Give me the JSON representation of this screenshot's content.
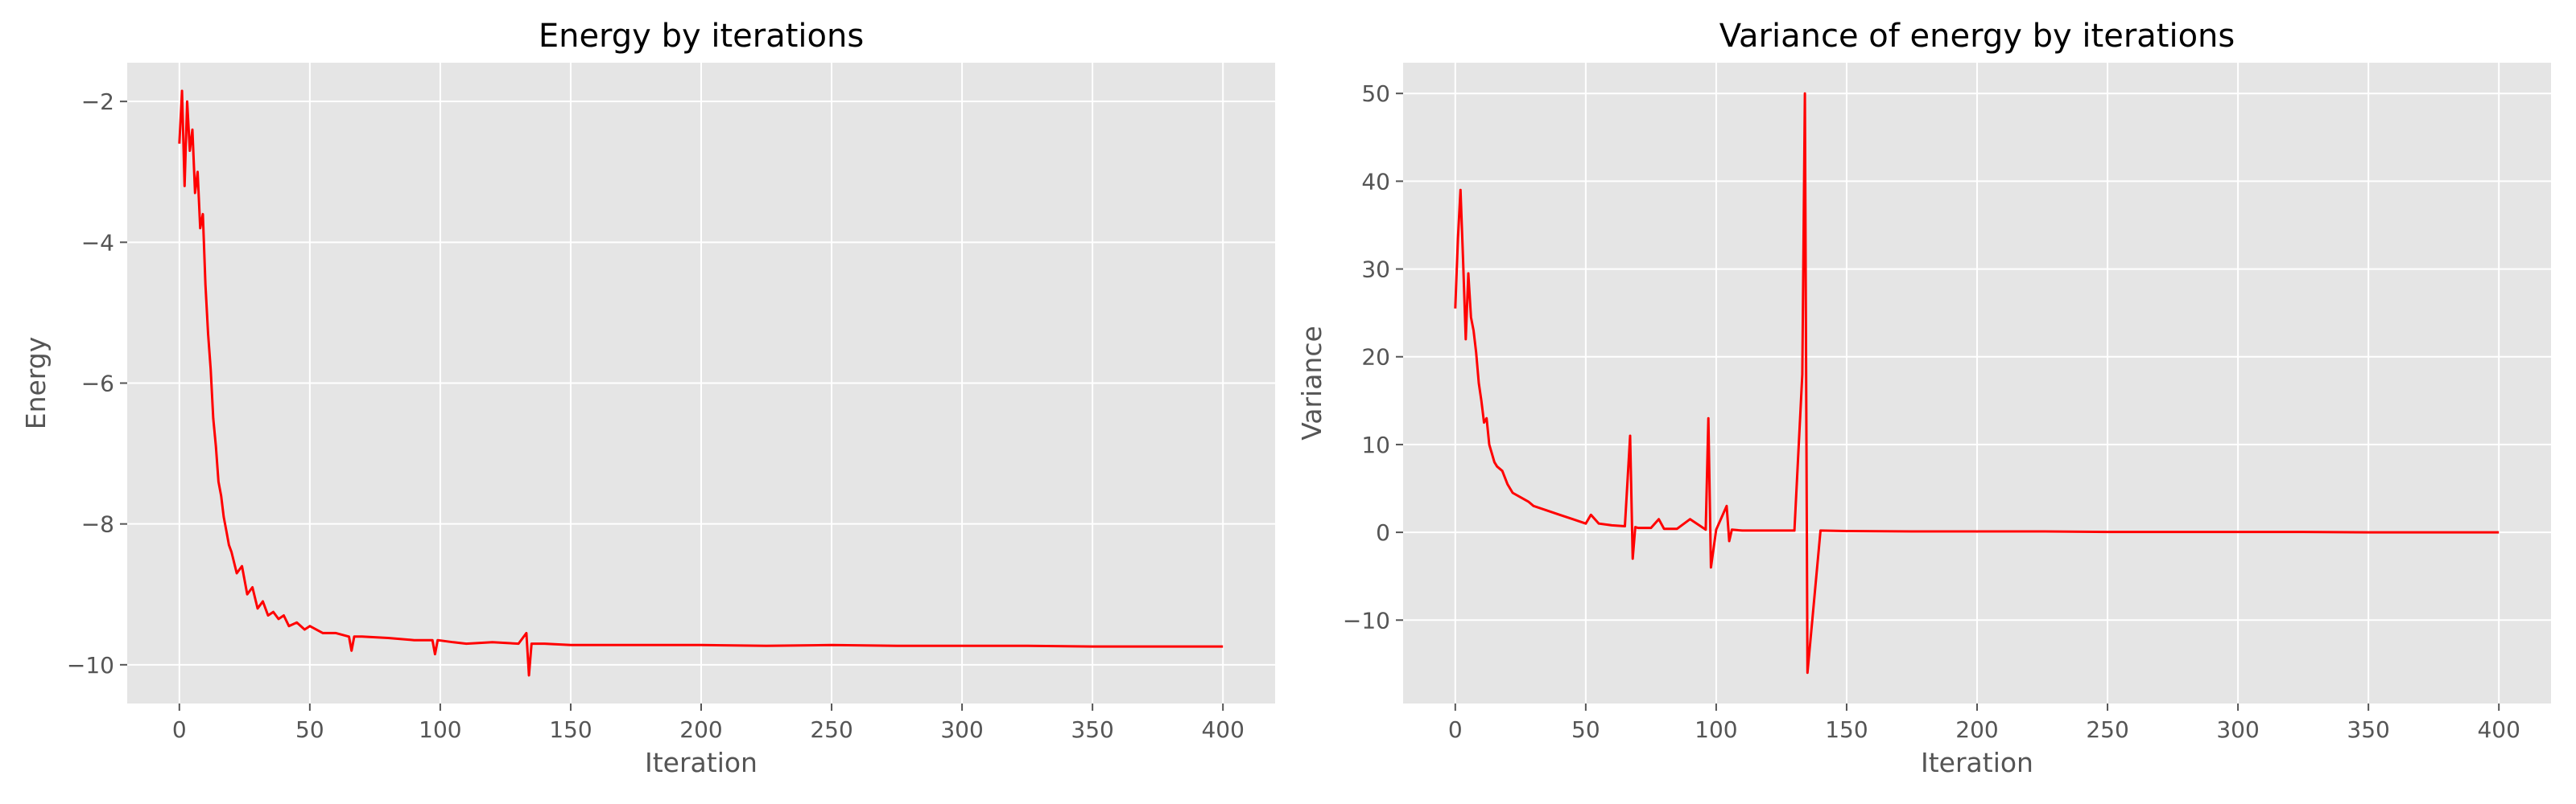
{
  "chart_data": [
    {
      "type": "line",
      "title": "Energy by iterations",
      "xlabel": "Iteration",
      "ylabel": "Energy",
      "xlim": [
        -20,
        420
      ],
      "ylim": [
        -10.55,
        -1.45
      ],
      "xticks": [
        0,
        50,
        100,
        150,
        200,
        250,
        300,
        350,
        400
      ],
      "xtick_labels": [
        "0",
        "50",
        "100",
        "150",
        "200",
        "250",
        "300",
        "350",
        "400"
      ],
      "yticks": [
        -10,
        -8,
        -6,
        -4,
        -2
      ],
      "ytick_labels": [
        "−10",
        "−8",
        "−6",
        "−4",
        "−2"
      ],
      "grid": true,
      "legend": "none",
      "series": [
        {
          "color": "#ff0000",
          "x": [
            0,
            1,
            2,
            3,
            4,
            5,
            6,
            7,
            8,
            9,
            10,
            11,
            12,
            13,
            14,
            15,
            16,
            17,
            18,
            19,
            20,
            22,
            24,
            26,
            28,
            30,
            32,
            34,
            36,
            38,
            40,
            42,
            45,
            48,
            50,
            55,
            60,
            65,
            66,
            67,
            70,
            80,
            90,
            97,
            98,
            99,
            105,
            110,
            120,
            130,
            133,
            134,
            135,
            140,
            150,
            175,
            200,
            225,
            250,
            275,
            300,
            325,
            350,
            375,
            400
          ],
          "y": [
            -2.6,
            -1.85,
            -3.2,
            -2.0,
            -2.7,
            -2.4,
            -3.3,
            -3.0,
            -3.8,
            -3.6,
            -4.6,
            -5.3,
            -5.8,
            -6.5,
            -6.9,
            -7.4,
            -7.6,
            -7.9,
            -8.1,
            -8.3,
            -8.4,
            -8.7,
            -8.6,
            -9.0,
            -8.9,
            -9.2,
            -9.1,
            -9.3,
            -9.25,
            -9.35,
            -9.3,
            -9.45,
            -9.4,
            -9.5,
            -9.45,
            -9.55,
            -9.55,
            -9.6,
            -9.8,
            -9.6,
            -9.6,
            -9.62,
            -9.65,
            -9.65,
            -9.85,
            -9.65,
            -9.68,
            -9.7,
            -9.68,
            -9.7,
            -9.55,
            -10.15,
            -9.7,
            -9.7,
            -9.72,
            -9.72,
            -9.72,
            -9.73,
            -9.72,
            -9.73,
            -9.73,
            -9.73,
            -9.74,
            -9.74,
            -9.74
          ]
        }
      ]
    },
    {
      "type": "line",
      "title": "Variance of energy by iterations",
      "xlabel": "Iteration",
      "ylabel": "Variance",
      "xlim": [
        -20,
        420
      ],
      "ylim": [
        -19.5,
        53.5
      ],
      "xticks": [
        0,
        50,
        100,
        150,
        200,
        250,
        300,
        350,
        400
      ],
      "xtick_labels": [
        "0",
        "50",
        "100",
        "150",
        "200",
        "250",
        "300",
        "350",
        "400"
      ],
      "yticks": [
        -10,
        0,
        10,
        20,
        30,
        40,
        50
      ],
      "ytick_labels": [
        "−10",
        "0",
        "10",
        "20",
        "30",
        "40",
        "50"
      ],
      "grid": true,
      "legend": "none",
      "series": [
        {
          "color": "#ff0000",
          "x": [
            0,
            1,
            2,
            3,
            4,
            5,
            6,
            7,
            8,
            9,
            10,
            11,
            12,
            13,
            14,
            15,
            16,
            18,
            20,
            22,
            25,
            28,
            30,
            35,
            40,
            45,
            50,
            52,
            55,
            60,
            65,
            67,
            68,
            69,
            70,
            75,
            78,
            80,
            85,
            90,
            96,
            97,
            98,
            100,
            104,
            105,
            106,
            110,
            120,
            130,
            133,
            134,
            135,
            140,
            150,
            175,
            200,
            225,
            250,
            275,
            300,
            325,
            350,
            375,
            400
          ],
          "y": [
            25.5,
            33.5,
            39.0,
            31.0,
            22.0,
            29.5,
            24.5,
            23.0,
            20.5,
            17.0,
            15.0,
            12.5,
            13.0,
            10.0,
            9.0,
            8.0,
            7.5,
            7.0,
            5.5,
            4.5,
            4.0,
            3.5,
            3.0,
            2.5,
            2.0,
            1.5,
            1.0,
            2.0,
            1.0,
            0.8,
            0.7,
            11.0,
            -3.0,
            0.6,
            0.5,
            0.5,
            1.5,
            0.4,
            0.4,
            1.5,
            0.3,
            13.0,
            -4.0,
            0.3,
            3.0,
            -1.0,
            0.3,
            0.2,
            0.2,
            0.2,
            18.0,
            50.0,
            -16.0,
            0.2,
            0.15,
            0.1,
            0.1,
            0.1,
            0.05,
            0.05,
            0.05,
            0.05,
            0.0,
            0.0,
            0.0
          ]
        }
      ]
    }
  ]
}
